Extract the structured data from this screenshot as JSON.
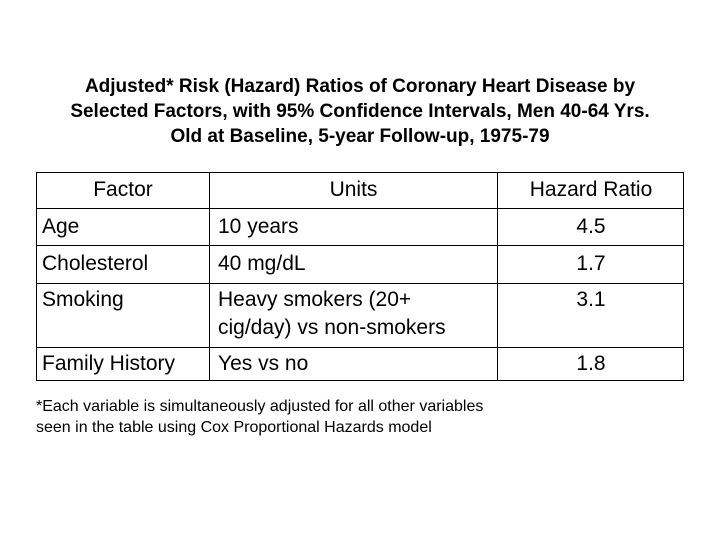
{
  "title": {
    "line1": "Adjusted* Risk (Hazard) Ratios of Coronary Heart Disease by",
    "line2": "Selected Factors, with 95% Confidence Intervals, Men 40-64 Yrs.",
    "line3": "Old at Baseline, 5-year Follow-up, 1975-79"
  },
  "table": {
    "headers": {
      "factor": "Factor",
      "units": "Units",
      "hazard_ratio": "Hazard Ratio"
    },
    "rows": [
      {
        "factor": "Age",
        "units": "10 years",
        "units2": "",
        "hazard_ratio": "4.5"
      },
      {
        "factor": "Cholesterol",
        "units": "40 mg/dL",
        "units2": "",
        "hazard_ratio": "1.7"
      },
      {
        "factor": "Smoking",
        "units": "Heavy smokers (20+",
        "units2": "cig/day) vs non-smokers",
        "hazard_ratio": "3.1"
      },
      {
        "factor": "Family History",
        "units": "Yes vs no",
        "units2": "",
        "hazard_ratio": "1.8"
      }
    ]
  },
  "footnote": {
    "line1": "*Each variable is simultaneously adjusted for all other variables",
    "line2": "seen in the table using Cox Proportional Hazards model"
  }
}
